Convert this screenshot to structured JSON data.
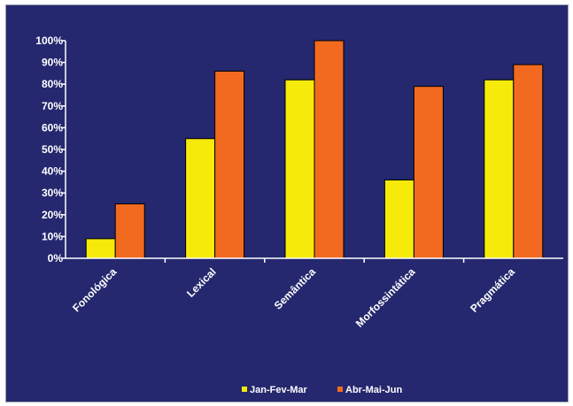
{
  "chart_data": {
    "type": "bar",
    "categories": [
      "Fonológica",
      "Lexical",
      "Semântica",
      "Morfossintática",
      "Pragmática"
    ],
    "series": [
      {
        "name": "Jan-Fev-Mar",
        "values": [
          9,
          55,
          82,
          36,
          82
        ],
        "color": "#f5ea0a"
      },
      {
        "name": "Abr-Mai-Jun",
        "values": [
          25,
          86,
          100,
          79,
          89
        ],
        "color": "#f26a1f"
      }
    ],
    "y_ticks": [
      "0%",
      "10%",
      "20%",
      "30%",
      "40%",
      "50%",
      "60%",
      "70%",
      "80%",
      "90%",
      "100%"
    ],
    "ylim": [
      0,
      100
    ],
    "grid": false,
    "legend_position": "bottom",
    "background_color": "#25286e",
    "axis_color": "#ffffff"
  }
}
